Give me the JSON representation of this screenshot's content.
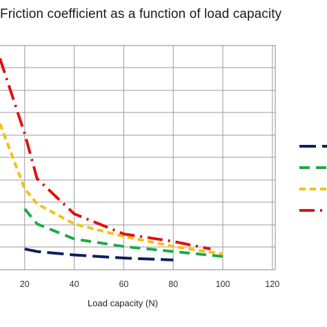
{
  "chart_data": {
    "type": "line",
    "title": "Friction coefficient as a function of load capacity",
    "xlabel": "Load capacity (N)",
    "ylabel": "",
    "xlim": [
      0,
      120
    ],
    "ylim": [
      0,
      0.45
    ],
    "x_ticks": [
      20,
      40,
      60,
      80,
      100,
      120
    ],
    "grid": true,
    "legend_position": "right",
    "series": [
      {
        "color": "#0d1f5c",
        "dash": "long",
        "x": [
          20,
          25,
          40,
          60,
          80
        ],
        "y": [
          0.04,
          0.035,
          0.028,
          0.022,
          0.018
        ]
      },
      {
        "color": "#1fa84a",
        "dash": "medium",
        "x": [
          20,
          25,
          40,
          60,
          80,
          100
        ],
        "y": [
          0.12,
          0.09,
          0.06,
          0.045,
          0.035,
          0.025
        ]
      },
      {
        "color": "#f5c010",
        "dash": "short",
        "x": [
          10,
          20,
          25,
          40,
          60,
          80,
          100
        ],
        "y": [
          0.29,
          0.16,
          0.13,
          0.09,
          0.065,
          0.045,
          0.03
        ]
      },
      {
        "color": "#e01010",
        "dash": "dashdot",
        "x": [
          10,
          20,
          25,
          40,
          60,
          80,
          95
        ],
        "y": [
          0.42,
          0.27,
          0.18,
          0.11,
          0.07,
          0.055,
          0.04
        ]
      }
    ]
  }
}
